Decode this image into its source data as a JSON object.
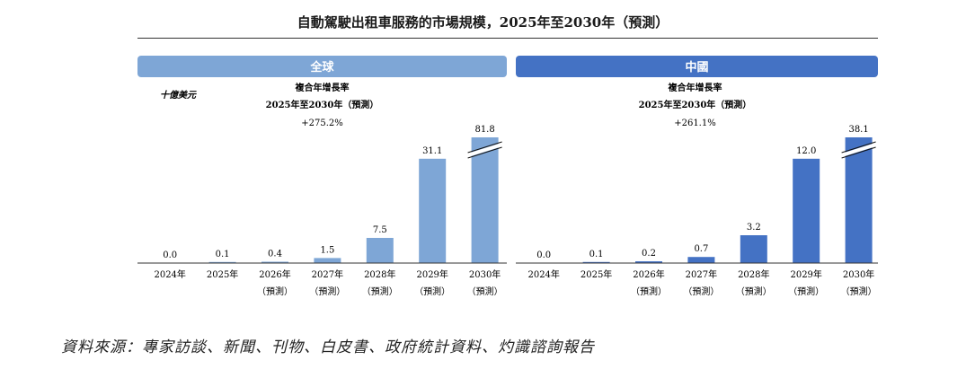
{
  "title": "自動駕駛出租車服務的市場規模，2025年至2030年（預測）",
  "source": "資料來源：專家訪談、新聞、刊物、白皮書、政府統計資料、灼識諮詢報告",
  "colors": {
    "global": "#7ea6d6",
    "china": "#4472c4",
    "axis": "#333333",
    "text": "#1a1a1a"
  },
  "chart_data": [
    {
      "type": "bar",
      "panel_title": "全球",
      "unit_label": "十億美元",
      "cagr_title": "複合年增長率",
      "cagr_period": "2025年至2030年（預測）",
      "cagr_value": "+275.2%",
      "categories": [
        [
          "2024年",
          ""
        ],
        [
          "2025年",
          ""
        ],
        [
          "2026年",
          "（預測）"
        ],
        [
          "2027年",
          "（預測）"
        ],
        [
          "2028年",
          "（預測）"
        ],
        [
          "2029年",
          "（預測）"
        ],
        [
          "2030年",
          "（預測）"
        ]
      ],
      "values": [
        0.0,
        0.1,
        0.4,
        1.5,
        7.5,
        31.1,
        81.8
      ],
      "value_labels": [
        "0.0",
        "0.1",
        "0.4",
        "1.5",
        "7.5",
        "31.1",
        "81.8"
      ],
      "axis_break_bar": 6,
      "color": "#7ea6d6"
    },
    {
      "type": "bar",
      "panel_title": "中國",
      "unit_label": "",
      "cagr_title": "複合年增長率",
      "cagr_period": "2025年至2030年（預測）",
      "cagr_value": "+261.1%",
      "categories": [
        [
          "2024年",
          ""
        ],
        [
          "2025年",
          ""
        ],
        [
          "2026年",
          "（預測）"
        ],
        [
          "2027年",
          "（預測）"
        ],
        [
          "2028年",
          "（預測）"
        ],
        [
          "2029年",
          "（預測）"
        ],
        [
          "2030年",
          "（預測）"
        ]
      ],
      "values": [
        0.0,
        0.1,
        0.2,
        0.7,
        3.2,
        12.0,
        38.1
      ],
      "value_labels": [
        "0.0",
        "0.1",
        "0.2",
        "0.7",
        "3.2",
        "12.0",
        "38.1"
      ],
      "axis_break_bar": 6,
      "color": "#4472c4"
    }
  ]
}
